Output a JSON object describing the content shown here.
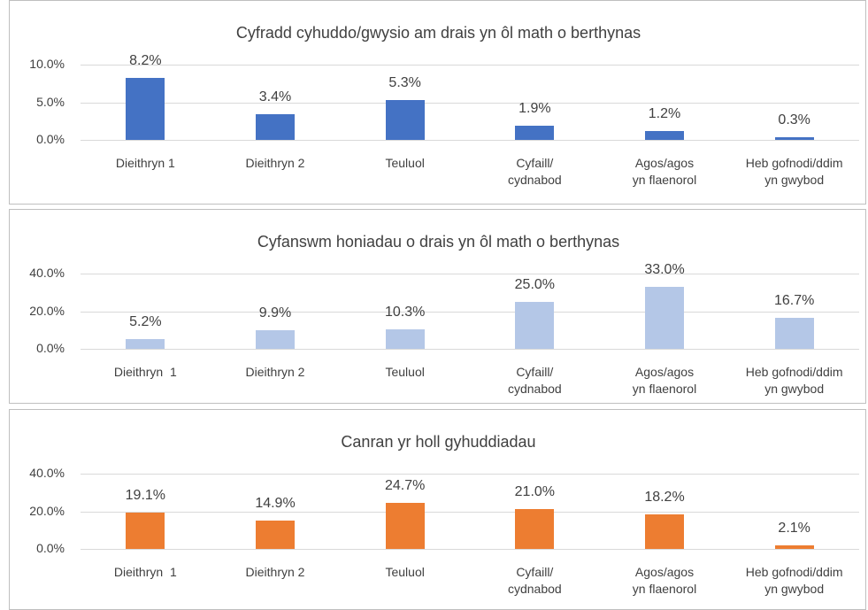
{
  "chart_data": [
    {
      "type": "bar",
      "title": "Cyfradd cyhuddo/gwysio am drais yn ôl math o berthynas",
      "categories": [
        "Dieithryn 1",
        "Dieithryn 2",
        "Teuluol",
        "Cyfaill/\ncydnabod",
        "Agos/agos\nyn flaenorol",
        "Heb gofnodi/ddim\nyn gwybod"
      ],
      "values": [
        8.2,
        3.4,
        5.3,
        1.9,
        1.2,
        0.3
      ],
      "value_labels": [
        "8.2%",
        "3.4%",
        "5.3%",
        "1.9%",
        "1.2%",
        "0.3%"
      ],
      "color": "#4472c4",
      "ylim": [
        0,
        10
      ],
      "yticks": [
        {
          "value": 0,
          "label": "0.0%"
        },
        {
          "value": 5,
          "label": "5.0%"
        },
        {
          "value": 10,
          "label": "10.0%"
        }
      ],
      "grid": true
    },
    {
      "type": "bar",
      "title": "Cyfanswm honiadau o drais yn ôl math o berthynas",
      "categories": [
        "Dieithryn  1",
        "Dieithryn 2",
        "Teuluol",
        "Cyfaill/\ncydnabod",
        "Agos/agos\nyn flaenorol",
        "Heb gofnodi/ddim\nyn gwybod"
      ],
      "values": [
        5.2,
        9.9,
        10.3,
        25.0,
        33.0,
        16.7
      ],
      "value_labels": [
        "5.2%",
        "9.9%",
        "10.3%",
        "25.0%",
        "33.0%",
        "16.7%"
      ],
      "color": "#b4c7e7",
      "ylim": [
        0,
        40
      ],
      "yticks": [
        {
          "value": 0,
          "label": "0.0%"
        },
        {
          "value": 20,
          "label": "20.0%"
        },
        {
          "value": 40,
          "label": "40.0%"
        }
      ],
      "grid": true
    },
    {
      "type": "bar",
      "title": "Canran yr holl gyhuddiadau",
      "categories": [
        "Dieithryn  1",
        "Dieithryn 2",
        "Teuluol",
        "Cyfaill/\ncydnabod",
        "Agos/agos\nyn flaenorol",
        "Heb gofnodi/ddim\nyn gwybod"
      ],
      "values": [
        19.1,
        14.9,
        24.7,
        21.0,
        18.2,
        2.1
      ],
      "value_labels": [
        "19.1%",
        "14.9%",
        "24.7%",
        "21.0%",
        "18.2%",
        "2.1%"
      ],
      "color": "#ed7d31",
      "ylim": [
        0,
        40
      ],
      "yticks": [
        {
          "value": 0,
          "label": "0.0%"
        },
        {
          "value": 20,
          "label": "20.0%"
        },
        {
          "value": 40,
          "label": "40.0%"
        }
      ],
      "grid": true
    }
  ]
}
